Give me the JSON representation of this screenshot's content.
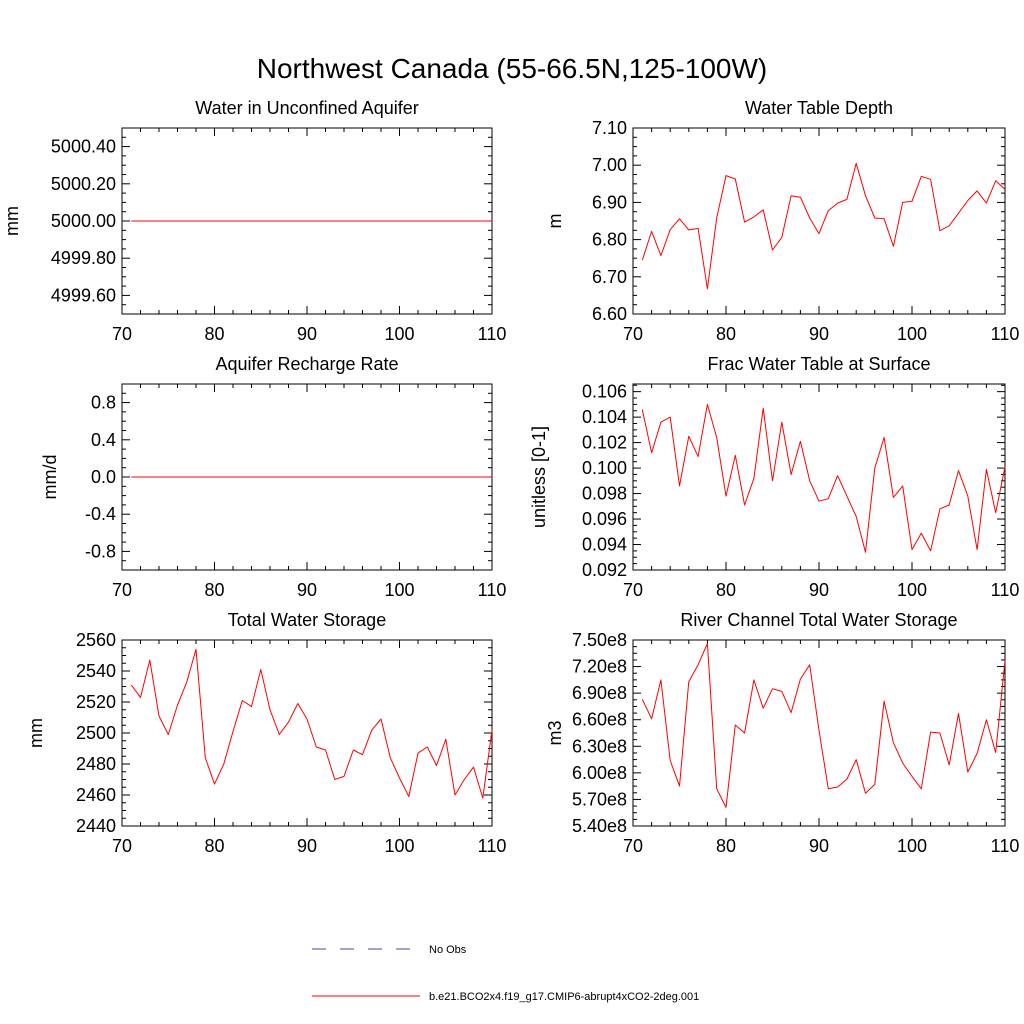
{
  "title": "Northwest Canada (55-66.5N,125-100W)",
  "legend": {
    "entries": [
      {
        "label": "No Obs",
        "style": "dashed",
        "color": "#4a4aa8"
      },
      {
        "label": "b.e21.BCO2x4.f19_g17.CMIP6-abrupt4xCO2-2deg.001",
        "style": "solid",
        "color": "#ff0000"
      }
    ]
  },
  "chart_data": [
    {
      "type": "line",
      "title": "Water in Unconfined Aquifer",
      "ylabel": "mm",
      "xlim": [
        70,
        110
      ],
      "ylim": [
        4999.5,
        5000.5
      ],
      "xticks": [
        70,
        80,
        90,
        100,
        110
      ],
      "yticks": [
        4999.6,
        4999.8,
        5000.0,
        5000.2,
        5000.4
      ],
      "ytick_labels": [
        "4999.60",
        "4999.80",
        "5000.00",
        "5000.20",
        "5000.40"
      ],
      "series": [
        {
          "name": "b.e21.BCO2x4.f19_g17.CMIP6-abrupt4xCO2-2deg.001",
          "color": "#ff0000",
          "x_start": 71,
          "values": [
            5000,
            5000,
            5000,
            5000,
            5000,
            5000,
            5000,
            5000,
            5000,
            5000,
            5000,
            5000,
            5000,
            5000,
            5000,
            5000,
            5000,
            5000,
            5000,
            5000,
            5000,
            5000,
            5000,
            5000,
            5000,
            5000,
            5000,
            5000,
            5000,
            5000,
            5000,
            5000,
            5000,
            5000,
            5000,
            5000,
            5000,
            5000,
            5000,
            5000
          ]
        }
      ]
    },
    {
      "type": "line",
      "title": "Water Table Depth",
      "ylabel": "m",
      "xlim": [
        70,
        110
      ],
      "ylim": [
        6.6,
        7.1
      ],
      "xticks": [
        70,
        80,
        90,
        100,
        110
      ],
      "yticks": [
        6.6,
        6.7,
        6.8,
        6.9,
        7.0,
        7.1
      ],
      "ytick_labels": [
        "6.60",
        "6.70",
        "6.80",
        "6.90",
        "7.00",
        "7.10"
      ],
      "series": [
        {
          "name": "b.e21.BCO2x4.f19_g17.CMIP6-abrupt4xCO2-2deg.001",
          "color": "#ff0000",
          "x_start": 71,
          "values": [
            6.745,
            6.822,
            6.757,
            6.827,
            6.856,
            6.826,
            6.83,
            6.668,
            6.858,
            6.972,
            6.963,
            6.847,
            6.861,
            6.88,
            6.772,
            6.806,
            6.918,
            6.914,
            6.858,
            6.816,
            6.878,
            6.898,
            6.908,
            7.005,
            6.918,
            6.858,
            6.856,
            6.782,
            6.9,
            6.903,
            6.97,
            6.962,
            6.824,
            6.837,
            6.871,
            6.905,
            6.931,
            6.898,
            6.958,
            6.935
          ]
        }
      ]
    },
    {
      "type": "line",
      "title": "Aquifer Recharge Rate",
      "ylabel": "mm/d",
      "xlim": [
        70,
        110
      ],
      "ylim": [
        -1.0,
        1.0
      ],
      "xticks": [
        70,
        80,
        90,
        100,
        110
      ],
      "yticks": [
        -0.8,
        -0.4,
        0.0,
        0.4,
        0.8
      ],
      "ytick_labels": [
        "-0.8",
        "-0.4",
        "0.0",
        "0.4",
        "0.8"
      ],
      "series": [
        {
          "name": "b.e21.BCO2x4.f19_g17.CMIP6-abrupt4xCO2-2deg.001",
          "color": "#ff0000",
          "x_start": 71,
          "values": [
            0,
            0,
            0,
            0,
            0,
            0,
            0,
            0,
            0,
            0,
            0,
            0,
            0,
            0,
            0,
            0,
            0,
            0,
            0,
            0,
            0,
            0,
            0,
            0,
            0,
            0,
            0,
            0,
            0,
            0,
            0,
            0,
            0,
            0,
            0,
            0,
            0,
            0,
            0,
            0
          ]
        }
      ]
    },
    {
      "type": "line",
      "title": "Frac Water Table at Surface",
      "ylabel": "unitless [0-1]",
      "xlim": [
        70,
        110
      ],
      "ylim": [
        0.092,
        0.1066
      ],
      "xticks": [
        70,
        80,
        90,
        100,
        110
      ],
      "yticks": [
        0.092,
        0.094,
        0.096,
        0.098,
        0.1,
        0.102,
        0.104,
        0.106
      ],
      "ytick_labels": [
        "0.092",
        "0.094",
        "0.096",
        "0.098",
        "0.100",
        "0.102",
        "0.104",
        "0.106"
      ],
      "series": [
        {
          "name": "b.e21.BCO2x4.f19_g17.CMIP6-abrupt4xCO2-2deg.001",
          "color": "#ff0000",
          "x_start": 71,
          "values": [
            0.1046,
            0.1012,
            0.1036,
            0.104,
            0.0986,
            0.1025,
            0.1009,
            0.105,
            0.1024,
            0.0978,
            0.101,
            0.0971,
            0.0992,
            0.1047,
            0.099,
            0.1036,
            0.0995,
            0.1021,
            0.099,
            0.0974,
            0.0976,
            0.0994,
            0.0978,
            0.0962,
            0.0934,
            0.1,
            0.1024,
            0.0977,
            0.0986,
            0.0936,
            0.0949,
            0.0935,
            0.0968,
            0.0971,
            0.0998,
            0.0978,
            0.0936,
            0.0999,
            0.0965,
            0.1001
          ]
        }
      ]
    },
    {
      "type": "line",
      "title": "Total Water Storage",
      "ylabel": "mm",
      "xlim": [
        70,
        110
      ],
      "ylim": [
        2440,
        2560
      ],
      "xticks": [
        70,
        80,
        90,
        100,
        110
      ],
      "yticks": [
        2440,
        2460,
        2480,
        2500,
        2520,
        2540,
        2560
      ],
      "ytick_labels": [
        "2440",
        "2460",
        "2480",
        "2500",
        "2520",
        "2540",
        "2560"
      ],
      "series": [
        {
          "name": "b.e21.BCO2x4.f19_g17.CMIP6-abrupt4xCO2-2deg.001",
          "color": "#ff0000",
          "x_start": 71,
          "values": [
            2531,
            2523,
            2547,
            2511,
            2499,
            2518,
            2533,
            2554,
            2484,
            2467,
            2480,
            2501,
            2521,
            2517,
            2541,
            2515,
            2499,
            2507,
            2519,
            2509,
            2491,
            2489,
            2470,
            2472,
            2489,
            2486,
            2502,
            2509,
            2484,
            2471,
            2459,
            2487,
            2491,
            2479,
            2496,
            2460,
            2470,
            2478,
            2458,
            2502
          ]
        }
      ]
    },
    {
      "type": "line",
      "title": "River Channel Total Water Storage",
      "ylabel": "m3",
      "xlim": [
        70,
        110
      ],
      "ylim": [
        540000000,
        750000000
      ],
      "xticks": [
        70,
        80,
        90,
        100,
        110
      ],
      "yticks": [
        540000000,
        570000000,
        600000000,
        630000000,
        660000000,
        690000000,
        720000000,
        750000000
      ],
      "ytick_labels": [
        "5.40e8",
        "5.70e8",
        "6.00e8",
        "6.30e8",
        "6.60e8",
        "6.90e8",
        "7.20e8",
        "7.50e8"
      ],
      "series": [
        {
          "name": "b.e21.BCO2x4.f19_g17.CMIP6-abrupt4xCO2-2deg.001",
          "color": "#ff0000",
          "x_start": 71,
          "values": [
            683000000,
            661000000,
            705000000,
            614000000,
            585000000,
            703000000,
            722000000,
            746000000,
            582000000,
            561000000,
            654000000,
            645000000,
            705000000,
            673000000,
            695000000,
            692000000,
            668000000,
            706000000,
            722000000,
            648000000,
            582000000,
            584000000,
            593000000,
            615000000,
            577000000,
            587000000,
            681000000,
            634000000,
            611000000,
            596000000,
            582000000,
            646000000,
            645000000,
            609000000,
            667000000,
            601000000,
            622000000,
            660000000,
            623000000,
            727000000
          ]
        }
      ]
    }
  ]
}
